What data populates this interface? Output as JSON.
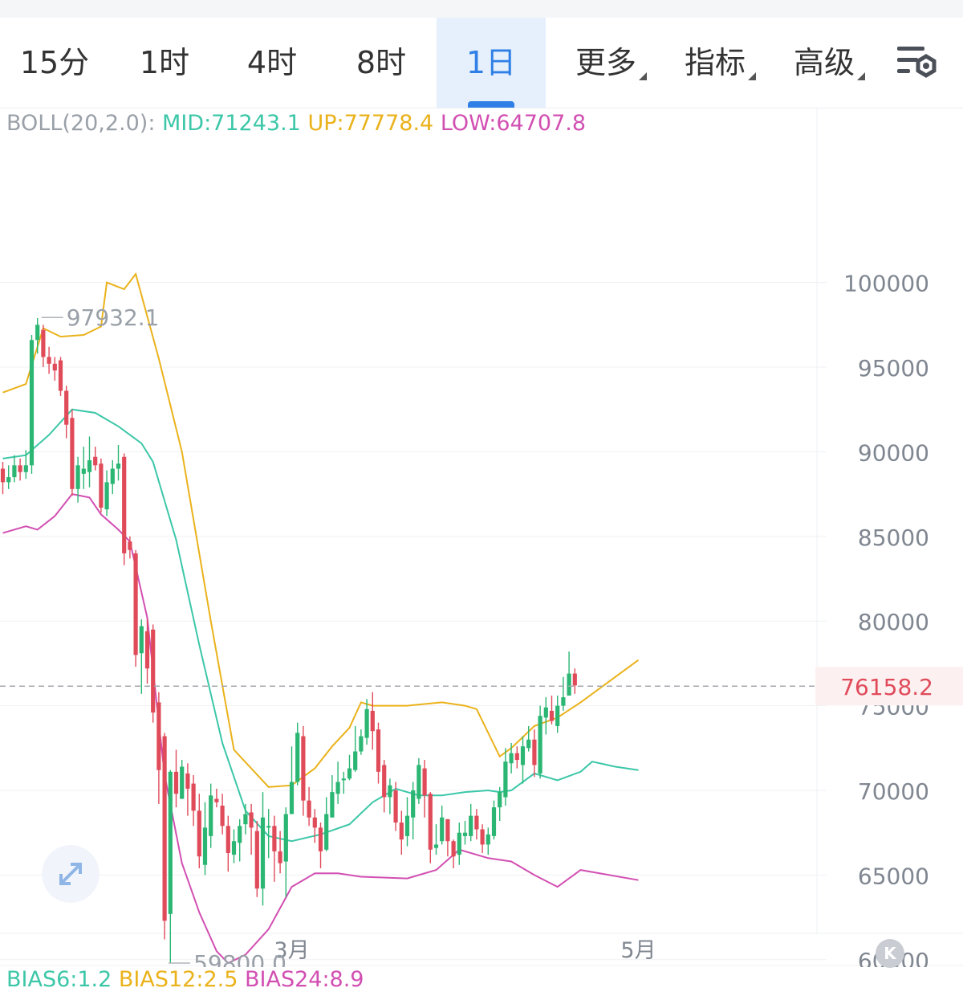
{
  "tabs": [
    {
      "label": "15分",
      "active": false,
      "dropdown": false
    },
    {
      "label": "1时",
      "active": false,
      "dropdown": false
    },
    {
      "label": "4时",
      "active": false,
      "dropdown": false
    },
    {
      "label": "8时",
      "active": false,
      "dropdown": false
    },
    {
      "label": "1日",
      "active": true,
      "dropdown": false
    },
    {
      "label": "更多",
      "active": false,
      "dropdown": true
    },
    {
      "label": "指标",
      "active": false,
      "dropdown": true
    },
    {
      "label": "高级",
      "active": false,
      "dropdown": true
    }
  ],
  "settings_icon": "chart-settings-icon",
  "indicator": {
    "name": "BOLL(20,2.0):",
    "mid": "MID:71243.1",
    "up": "UP:77778.4",
    "low": "LOW:64707.8"
  },
  "bias": {
    "b6": "BIAS6:1.2",
    "b12": "BIAS12:2.5",
    "b24": "BIAS24:8.9"
  },
  "colors": {
    "up_candle": "#2bb673",
    "down_candle": "#e04b5a",
    "mid_line": "#3cc7a8",
    "upper_band": "#eab21b",
    "lower_band": "#d24fb2",
    "accent": "#2f7fe6",
    "last_price": "#e04b5a"
  },
  "buttons": {
    "expand_icon": "expand-icon",
    "k_label": "K"
  },
  "chart_data": {
    "type": "candlestick",
    "y_ticks": [
      "100000",
      "95000",
      "90000",
      "85000",
      "80000",
      "75000",
      "70000",
      "65000",
      "60000"
    ],
    "ylim": [
      58000,
      107500
    ],
    "x_ticks": [
      {
        "label": "3月",
        "index": 50
      },
      {
        "label": "5月",
        "index": 110
      }
    ],
    "grid": true,
    "last_price": 76158.2,
    "last_price_label": "76158.2",
    "max_label": "97932.1",
    "max_label_index": 6,
    "min_label": "59800.0",
    "min_label_index": 28,
    "candles": [
      [
        89000,
        88200,
        89400,
        87500
      ],
      [
        88200,
        88500,
        89200,
        87800
      ],
      [
        88500,
        89200,
        89800,
        88200
      ],
      [
        89200,
        88800,
        89600,
        88300
      ],
      [
        88800,
        89200,
        90100,
        88400
      ],
      [
        89200,
        96600,
        96900,
        88700
      ],
      [
        96600,
        97500,
        97900,
        95800
      ],
      [
        97200,
        95600,
        97500,
        95000
      ],
      [
        95600,
        95200,
        96200,
        94600
      ],
      [
        95200,
        94800,
        95600,
        94200
      ],
      [
        95400,
        93600,
        95600,
        93300
      ],
      [
        93600,
        91600,
        93900,
        90800
      ],
      [
        92000,
        87800,
        92500,
        87400
      ],
      [
        87800,
        89200,
        89700,
        87000
      ],
      [
        88700,
        89000,
        90300,
        87800
      ],
      [
        88800,
        89500,
        90900,
        87900
      ],
      [
        89700,
        89200,
        90300,
        88900
      ],
      [
        89300,
        86700,
        89600,
        86400
      ],
      [
        86600,
        88200,
        88900,
        86200
      ],
      [
        88100,
        89000,
        89500,
        87500
      ],
      [
        89000,
        89300,
        90400,
        88300
      ],
      [
        89700,
        84000,
        89900,
        83300
      ],
      [
        84700,
        84200,
        85000,
        83700
      ],
      [
        84000,
        78000,
        84200,
        77300
      ],
      [
        78100,
        79700,
        80100,
        75700
      ],
      [
        79400,
        77200,
        80100,
        76300
      ],
      [
        79500,
        74600,
        79800,
        74000
      ],
      [
        75200,
        71200,
        75800,
        69200
      ],
      [
        73200,
        62300,
        73400,
        61200
      ],
      [
        62700,
        71100,
        71200,
        59800
      ],
      [
        71100,
        69800,
        72400,
        69000
      ],
      [
        69500,
        71400,
        71800,
        69600
      ],
      [
        71000,
        70100,
        71600,
        68500
      ],
      [
        70400,
        68800,
        70900,
        67900
      ],
      [
        68800,
        66100,
        69800,
        65400
      ],
      [
        65600,
        67800,
        69300,
        65000
      ],
      [
        67300,
        69700,
        70400,
        66600
      ],
      [
        69500,
        69300,
        70100,
        69000
      ],
      [
        69100,
        67900,
        69800,
        67400
      ],
      [
        67900,
        66300,
        68500,
        65200
      ],
      [
        66200,
        67000,
        67700,
        65700
      ],
      [
        66900,
        67900,
        68300,
        65800
      ],
      [
        68000,
        68600,
        69200,
        67400
      ],
      [
        68700,
        67800,
        69200,
        66200
      ],
      [
        67600,
        64200,
        68200,
        63700
      ],
      [
        64200,
        68400,
        69900,
        63200
      ],
      [
        67800,
        67900,
        68900,
        66000
      ],
      [
        67900,
        66400,
        68500,
        64600
      ],
      [
        66400,
        65700,
        67600,
        65100
      ],
      [
        65800,
        68600,
        69000,
        63700
      ],
      [
        68600,
        70500,
        72600,
        70300
      ],
      [
        70500,
        73400,
        74000,
        70300
      ],
      [
        73200,
        69400,
        73800,
        68500
      ],
      [
        69400,
        68400,
        70200,
        67900
      ],
      [
        68400,
        67800,
        68900,
        66900
      ],
      [
        67800,
        66400,
        68100,
        65400
      ],
      [
        66500,
        68600,
        69600,
        66400
      ],
      [
        68400,
        69900,
        70900,
        68400
      ],
      [
        69800,
        70500,
        71700,
        69200
      ],
      [
        70600,
        70700,
        71100,
        69800
      ],
      [
        70700,
        71300,
        72100,
        70600
      ],
      [
        71200,
        72300,
        73800,
        71100
      ],
      [
        72300,
        73200,
        73600,
        72100
      ],
      [
        73100,
        74800,
        75400,
        72700
      ],
      [
        74700,
        73500,
        75800,
        72400
      ],
      [
        73600,
        71100,
        74000,
        70400
      ],
      [
        71500,
        69600,
        71800,
        68700
      ],
      [
        69600,
        70300,
        70700,
        68600
      ],
      [
        70000,
        68100,
        70500,
        67600
      ],
      [
        68100,
        67100,
        68800,
        66200
      ],
      [
        67300,
        68500,
        69600,
        66700
      ],
      [
        68400,
        70000,
        70500,
        67100
      ],
      [
        69500,
        71500,
        71900,
        69200
      ],
      [
        71300,
        69700,
        71800,
        68400
      ],
      [
        69800,
        66500,
        69900,
        65700
      ],
      [
        66600,
        66800,
        68000,
        66200
      ],
      [
        67000,
        68400,
        69100,
        66800
      ],
      [
        68300,
        67000,
        68300,
        66100
      ],
      [
        67000,
        66100,
        67100,
        65400
      ],
      [
        66200,
        67500,
        68100,
        65600
      ],
      [
        67300,
        67500,
        68200,
        66800
      ],
      [
        67300,
        68500,
        69200,
        67000
      ],
      [
        68500,
        67700,
        68900,
        67100
      ],
      [
        67700,
        66800,
        68000,
        66300
      ],
      [
        66800,
        67400,
        67800,
        66200
      ],
      [
        67300,
        69000,
        69400,
        67100
      ],
      [
        69000,
        69900,
        70200,
        68200
      ],
      [
        69600,
        71700,
        72500,
        69100
      ],
      [
        71600,
        72200,
        72800,
        71000
      ],
      [
        72200,
        71800,
        72600,
        71300
      ],
      [
        71500,
        72600,
        73200,
        70400
      ],
      [
        72500,
        73000,
        73800,
        72300
      ],
      [
        73000,
        71500,
        73600,
        70800
      ],
      [
        71000,
        74400,
        75000,
        70700
      ],
      [
        74300,
        74900,
        75500,
        73300
      ],
      [
        74700,
        74100,
        75600,
        73900
      ],
      [
        73800,
        75000,
        75600,
        73400
      ],
      [
        75000,
        75500,
        76700,
        74700
      ],
      [
        75600,
        76900,
        78200,
        75700
      ],
      [
        76900,
        76200,
        77200,
        75700
      ]
    ],
    "mid_band": [
      [
        0,
        89600
      ],
      [
        4,
        89800
      ],
      [
        8,
        91000
      ],
      [
        12,
        92500
      ],
      [
        16,
        92300
      ],
      [
        20,
        91500
      ],
      [
        24,
        90500
      ],
      [
        26,
        89400
      ],
      [
        30,
        84800
      ],
      [
        34,
        78600
      ],
      [
        38,
        72800
      ],
      [
        42,
        68800
      ],
      [
        46,
        67300
      ],
      [
        50,
        67000
      ],
      [
        55,
        67400
      ],
      [
        60,
        68000
      ],
      [
        64,
        69300
      ],
      [
        68,
        70100
      ],
      [
        72,
        69700
      ],
      [
        76,
        69700
      ],
      [
        80,
        69900
      ],
      [
        84,
        70000
      ],
      [
        86,
        69900
      ],
      [
        88,
        70000
      ],
      [
        92,
        71000
      ],
      [
        96,
        70600
      ],
      [
        100,
        71100
      ],
      [
        102,
        71700
      ],
      [
        106,
        71400
      ],
      [
        110,
        71200
      ]
    ],
    "upper_band": [
      [
        0,
        93500
      ],
      [
        4,
        94000
      ],
      [
        7,
        97300
      ],
      [
        10,
        96800
      ],
      [
        14,
        96900
      ],
      [
        17,
        97400
      ],
      [
        18,
        100000
      ],
      [
        21,
        99600
      ],
      [
        23,
        100500
      ],
      [
        27,
        95500
      ],
      [
        31,
        90000
      ],
      [
        36,
        80000
      ],
      [
        40,
        72400
      ],
      [
        46,
        70200
      ],
      [
        50,
        70300
      ],
      [
        54,
        71300
      ],
      [
        57,
        72600
      ],
      [
        60,
        73700
      ],
      [
        62,
        75200
      ],
      [
        64,
        75000
      ],
      [
        70,
        75000
      ],
      [
        76,
        75200
      ],
      [
        80,
        75000
      ],
      [
        82,
        74800
      ],
      [
        86,
        72000
      ],
      [
        88,
        72500
      ],
      [
        92,
        73800
      ],
      [
        96,
        74300
      ],
      [
        100,
        75200
      ],
      [
        110,
        77700
      ]
    ],
    "lower_band": [
      [
        0,
        85200
      ],
      [
        4,
        85600
      ],
      [
        6,
        85400
      ],
      [
        9,
        86200
      ],
      [
        12,
        87500
      ],
      [
        15,
        87300
      ],
      [
        17,
        86300
      ],
      [
        20,
        85400
      ],
      [
        22,
        84700
      ],
      [
        25,
        80200
      ],
      [
        28,
        70900
      ],
      [
        31,
        65700
      ],
      [
        34,
        62800
      ],
      [
        37,
        60500
      ],
      [
        39,
        59800
      ],
      [
        42,
        60300
      ],
      [
        46,
        61800
      ],
      [
        50,
        64300
      ],
      [
        54,
        65100
      ],
      [
        58,
        65100
      ],
      [
        62,
        64900
      ],
      [
        70,
        64800
      ],
      [
        75,
        65300
      ],
      [
        79,
        66500
      ],
      [
        84,
        66000
      ],
      [
        88,
        65800
      ],
      [
        92,
        65000
      ],
      [
        96,
        64300
      ],
      [
        100,
        65300
      ],
      [
        110,
        64700
      ]
    ]
  }
}
